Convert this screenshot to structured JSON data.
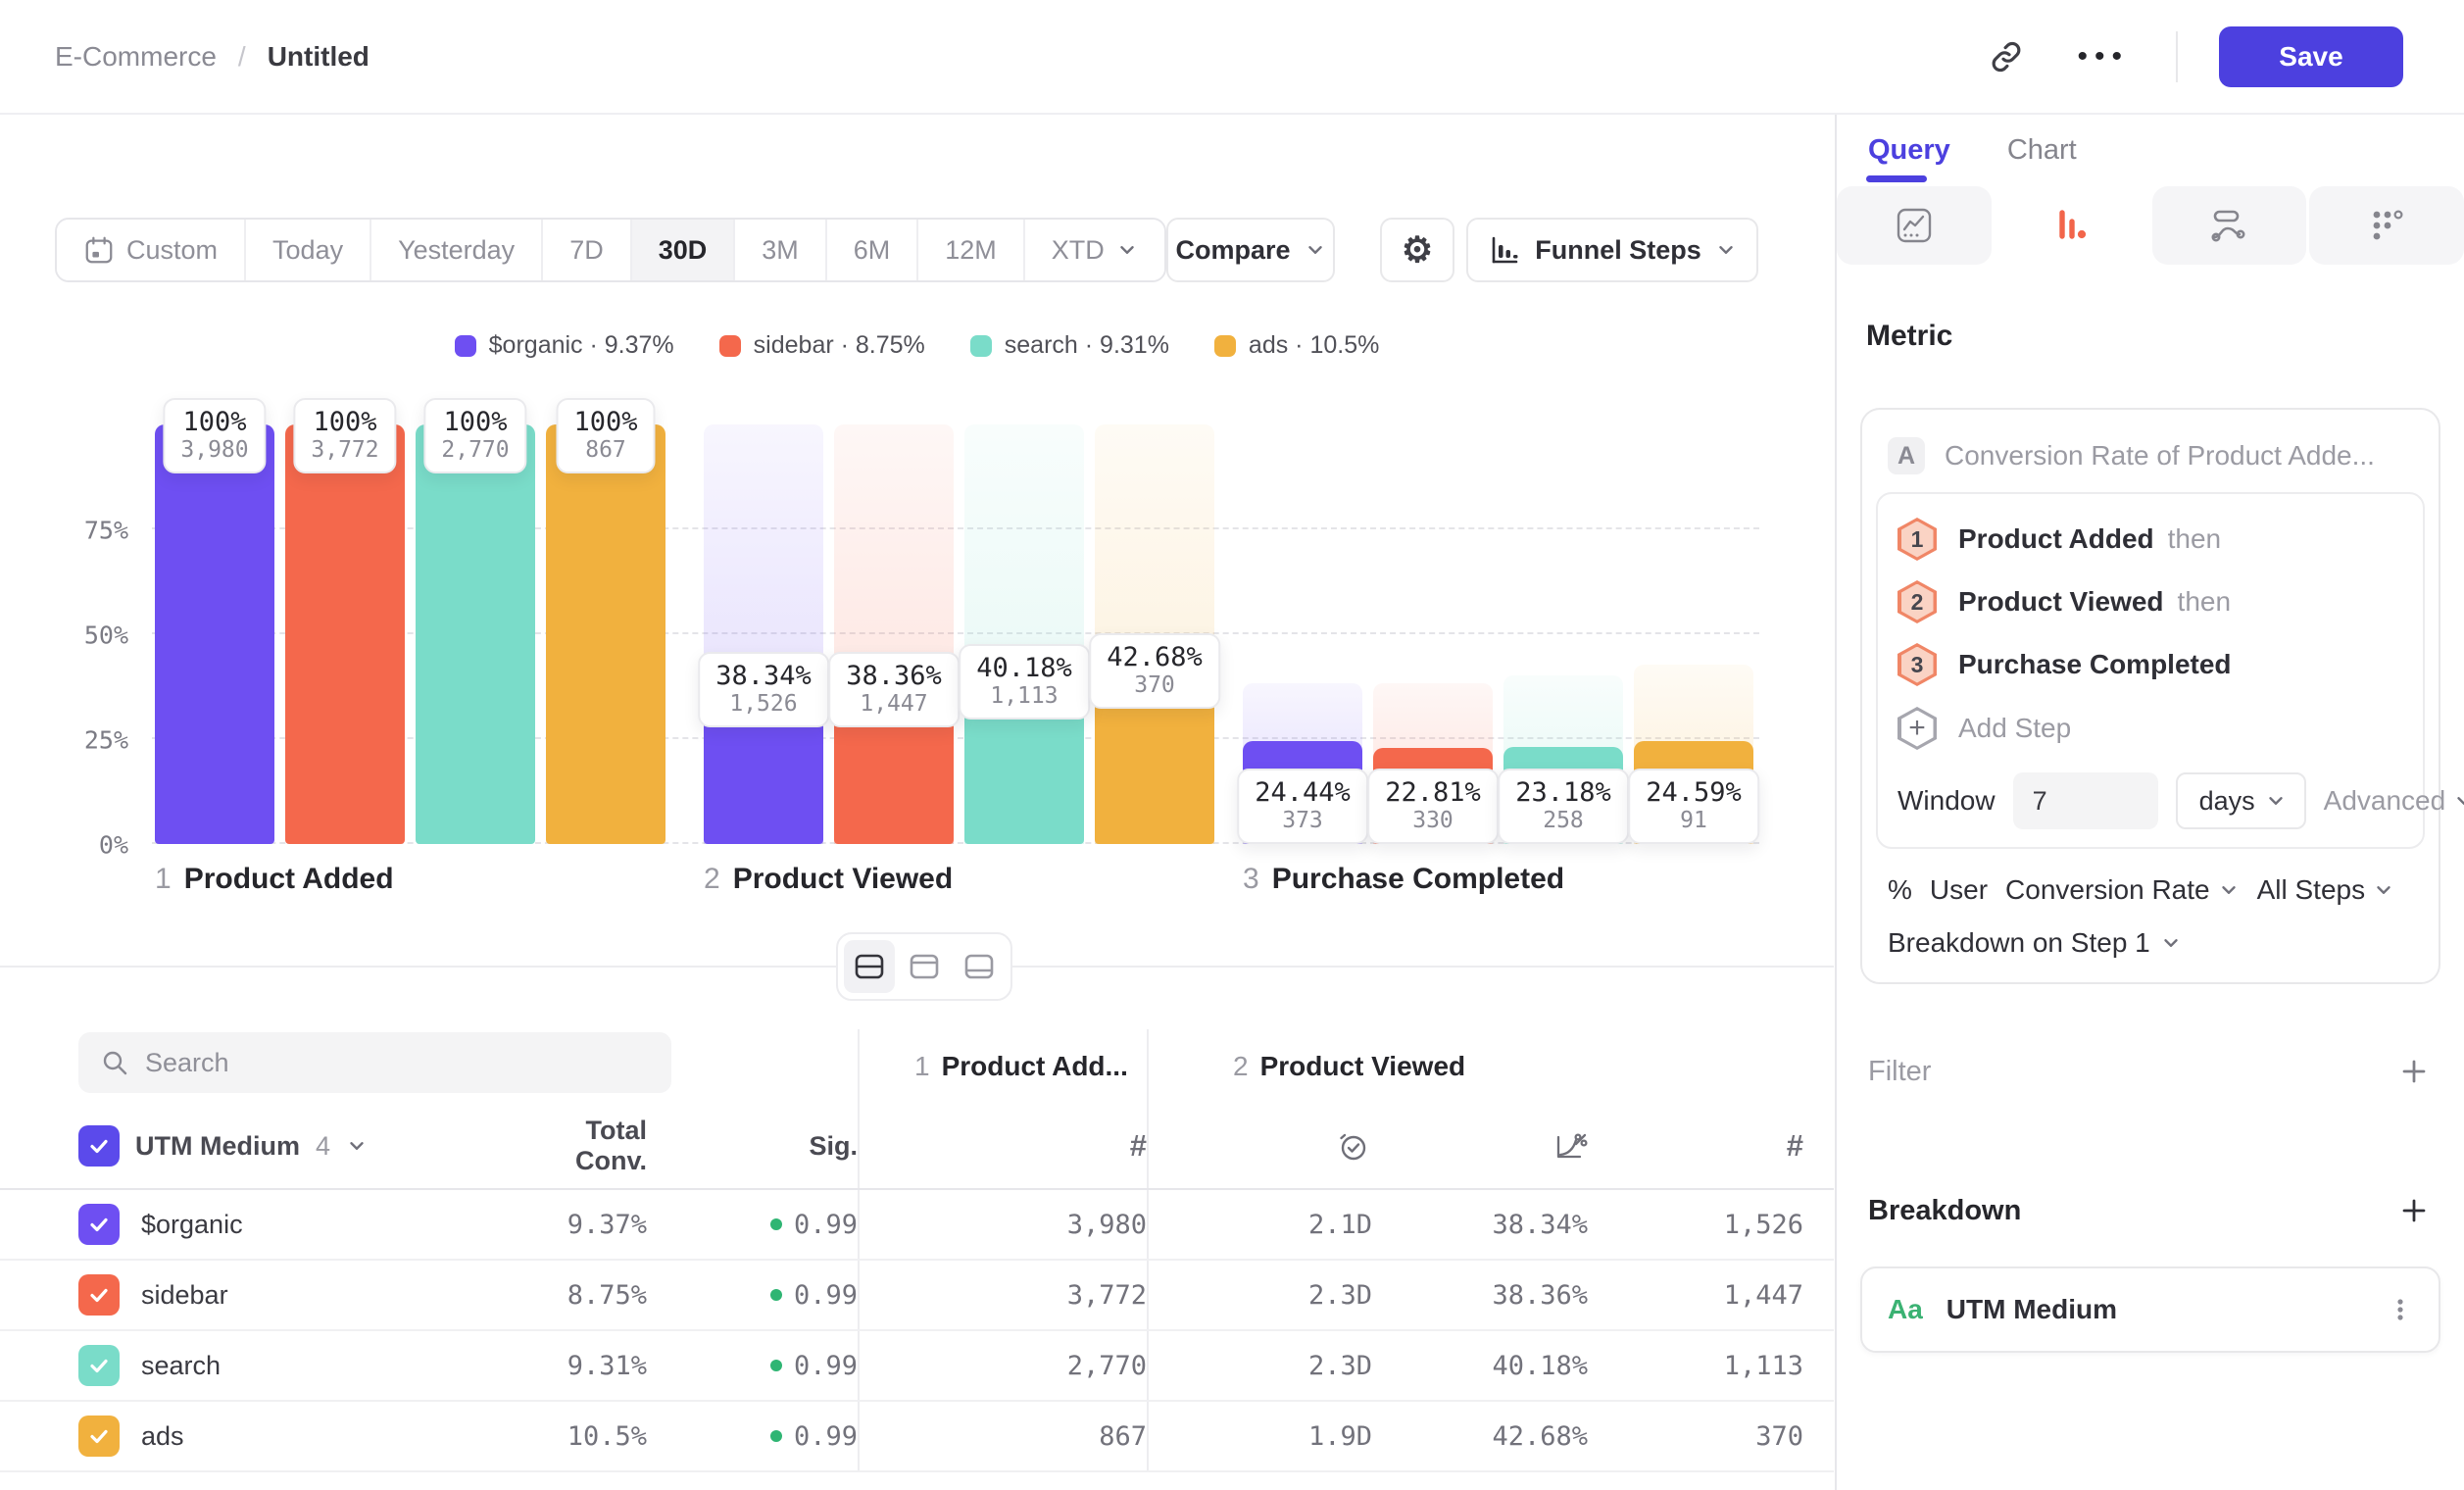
{
  "header": {
    "breadcrumb": {
      "project": "E-Commerce",
      "sep": "/",
      "page": "Untitled"
    },
    "save": "Save"
  },
  "toolbar": {
    "ranges": [
      {
        "label": "Custom",
        "icon": "calendar"
      },
      {
        "label": "Today"
      },
      {
        "label": "Yesterday"
      },
      {
        "label": "7D"
      },
      {
        "label": "30D",
        "active": true
      },
      {
        "label": "3M"
      },
      {
        "label": "6M"
      },
      {
        "label": "12M"
      },
      {
        "label": "XTD",
        "chevron": true
      }
    ],
    "compare": "Compare",
    "chart_type": "Funnel Steps"
  },
  "legend_separator": "·",
  "chart_data": {
    "type": "bar",
    "variant": "funnel-steps",
    "title": "",
    "steps": [
      {
        "num": "1",
        "label": "Product Added"
      },
      {
        "num": "2",
        "label": "Product Viewed"
      },
      {
        "num": "3",
        "label": "Purchase Completed"
      }
    ],
    "y_ticks": [
      "0%",
      "25%",
      "50%",
      "75%"
    ],
    "ylim": [
      0,
      100
    ],
    "grid": "dashed-horizontal",
    "legend_position": "top-center",
    "series": [
      {
        "name": "$organic",
        "color": "#6E4FF2",
        "overall_rate": "9.37%",
        "conversion_pct": [
          100,
          38.34,
          24.44
        ],
        "counts": [
          3980,
          1526,
          373
        ],
        "count_labels": [
          "3,980",
          "1,526",
          "373"
        ]
      },
      {
        "name": "sidebar",
        "color": "#F4684C",
        "overall_rate": "8.75%",
        "conversion_pct": [
          100,
          38.36,
          22.81
        ],
        "counts": [
          3772,
          1447,
          330
        ],
        "count_labels": [
          "3,772",
          "1,447",
          "330"
        ]
      },
      {
        "name": "search",
        "color": "#7ADCC9",
        "overall_rate": "9.31%",
        "conversion_pct": [
          100,
          40.18,
          23.18
        ],
        "counts": [
          2770,
          1113,
          258
        ],
        "count_labels": [
          "2,770",
          "1,113",
          "258"
        ]
      },
      {
        "name": "ads",
        "color": "#F1B13E",
        "overall_rate": "10.5%",
        "conversion_pct": [
          100,
          42.68,
          24.59
        ],
        "counts": [
          867,
          370,
          91
        ],
        "count_labels": [
          "867",
          "370",
          "91"
        ]
      }
    ]
  },
  "table": {
    "search_placeholder": "Search",
    "header": {
      "group": "UTM Medium",
      "group_count": "4",
      "total": "Total Conv.",
      "sig": "Sig."
    },
    "group_headers": [
      {
        "num": "1",
        "label": "Product Add..."
      },
      {
        "num": "2",
        "label": "Product Viewed"
      }
    ],
    "rows": [
      {
        "name": "$organic",
        "color": "#6E4FF2",
        "total_conv": "9.37%",
        "sig": "0.99",
        "step1_count": "3,980",
        "step2_time": "2.1D",
        "step2_pct": "38.34%",
        "step2_count": "1,526"
      },
      {
        "name": "sidebar",
        "color": "#F4684C",
        "total_conv": "8.75%",
        "sig": "0.99",
        "step1_count": "3,772",
        "step2_time": "2.3D",
        "step2_pct": "38.36%",
        "step2_count": "1,447"
      },
      {
        "name": "search",
        "color": "#7ADCC9",
        "total_conv": "9.31%",
        "sig": "0.99",
        "step1_count": "2,770",
        "step2_time": "2.3D",
        "step2_pct": "40.18%",
        "step2_count": "1,113"
      },
      {
        "name": "ads",
        "color": "#F1B13E",
        "total_conv": "10.5%",
        "sig": "0.99",
        "step1_count": "867",
        "step2_time": "1.9D",
        "step2_pct": "42.68%",
        "step2_count": "370"
      }
    ],
    "sig_dot_color": "#2FB573"
  },
  "query_panel": {
    "tab_query": "Query",
    "tab_chart": "Chart",
    "metric_heading": "Metric",
    "metric": {
      "letter": "A",
      "title": "Conversion Rate of Product Adde..."
    },
    "steps": [
      {
        "num": "1",
        "label": "Product Added",
        "suffix": "then"
      },
      {
        "num": "2",
        "label": "Product Viewed",
        "suffix": "then"
      },
      {
        "num": "3",
        "label": "Purchase Completed",
        "suffix": ""
      }
    ],
    "add_step": "Add Step",
    "window": {
      "label": "Window",
      "value": "7",
      "unit": "days",
      "advanced": "Advanced"
    },
    "measure": {
      "symbol": "%",
      "user": "User",
      "type": "Conversion Rate",
      "scope": "All Steps"
    },
    "breakdown_on": "Breakdown on Step 1",
    "filter_label": "Filter",
    "breakdown_label": "Breakdown",
    "breakdown_item": {
      "badge": "Aa",
      "name": "UTM Medium"
    }
  },
  "colors": {
    "accent": "#4C40DF",
    "active_icon_tab": "#F2654A",
    "sig_green": "#2FB573",
    "aa_green": "#3BB273"
  }
}
